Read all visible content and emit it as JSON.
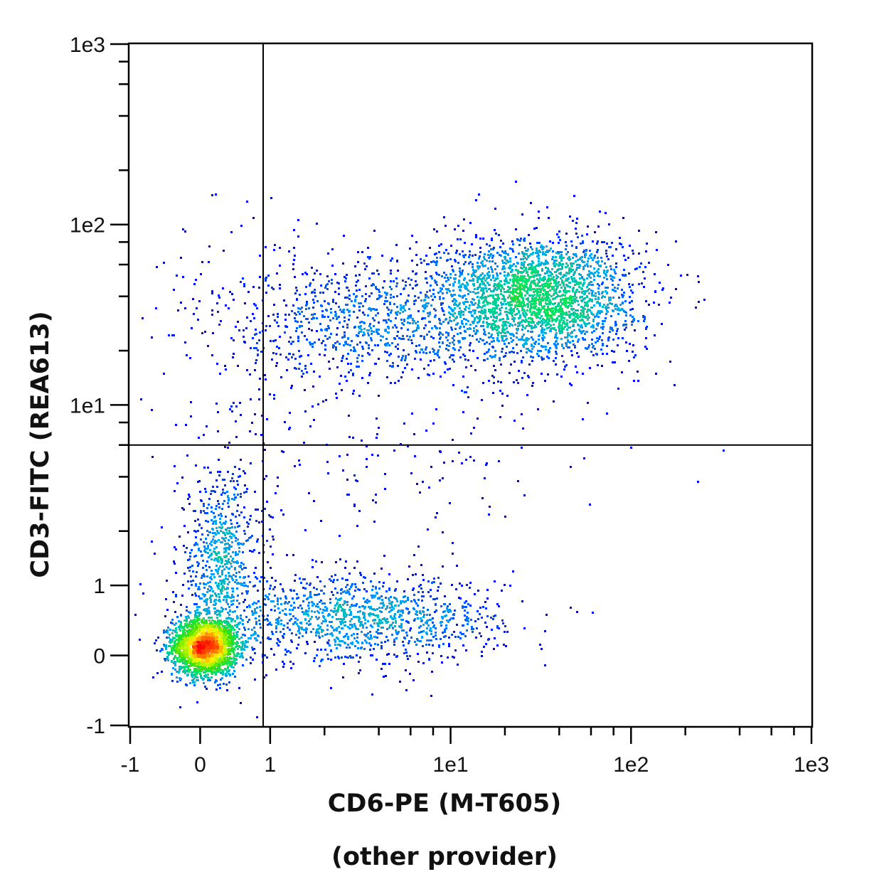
{
  "chart_data": {
    "type": "scatter",
    "subtype": "density-dot-plot",
    "title": "",
    "xlabel": "CD6-PE (M-T605)",
    "xlabel_sub": "(other provider)",
    "ylabel": "CD3-FITC (REA613)",
    "x_scale": "biexponential",
    "y_scale": "biexponential",
    "xlim": [
      -1,
      1000
    ],
    "ylim": [
      -1,
      1000
    ],
    "x_ticks": [
      {
        "value": -1,
        "label": "-1"
      },
      {
        "value": 0,
        "label": "0"
      },
      {
        "value": 1,
        "label": "1"
      },
      {
        "value": 10,
        "label": "1e1"
      },
      {
        "value": 100,
        "label": "1e2"
      },
      {
        "value": 1000,
        "label": "1e3"
      }
    ],
    "y_ticks": [
      {
        "value": -1,
        "label": "-1"
      },
      {
        "value": 0,
        "label": "0"
      },
      {
        "value": 1,
        "label": "1"
      },
      {
        "value": 10,
        "label": "1e1"
      },
      {
        "value": 100,
        "label": "1e2"
      },
      {
        "value": 1000,
        "label": "1e3"
      }
    ],
    "minor_ticks": [
      2,
      4,
      6,
      8,
      20,
      40,
      60,
      80,
      200,
      400,
      600,
      800
    ],
    "quadrant_gate": {
      "x": 0.9,
      "y": 6
    },
    "grid": false,
    "legend": "none",
    "colormap": [
      "#0000ff",
      "#00a0ff",
      "#00e070",
      "#40e000",
      "#ffff00",
      "#ff0000"
    ],
    "populations": [
      {
        "x": 0.06,
        "y": 0.14,
        "sd_x": 0.09,
        "sd_y": 0.08,
        "events": 2200
      },
      {
        "x": 0.29,
        "y": 1.35,
        "sd_x": 0.12,
        "sd_y": 0.25,
        "events": 700
      },
      {
        "x": 3.0,
        "y": 0.52,
        "sd_x": 0.4,
        "sd_y": 0.12,
        "events": 1200
      },
      {
        "x": 30,
        "y": 40,
        "sd_x": 0.28,
        "sd_y": 0.17,
        "events": 2500
      },
      {
        "x": 3.9,
        "y": 30,
        "sd_x": 0.4,
        "sd_y": 0.18,
        "events": 900
      },
      {
        "x": 0.49,
        "y": 25,
        "sd_x": 0.25,
        "sd_y": 0.4,
        "events": 120
      },
      {
        "x": 4.7,
        "y": 5.3,
        "sd_x": 0.6,
        "sd_y": 0.4,
        "events": 200
      }
    ]
  }
}
